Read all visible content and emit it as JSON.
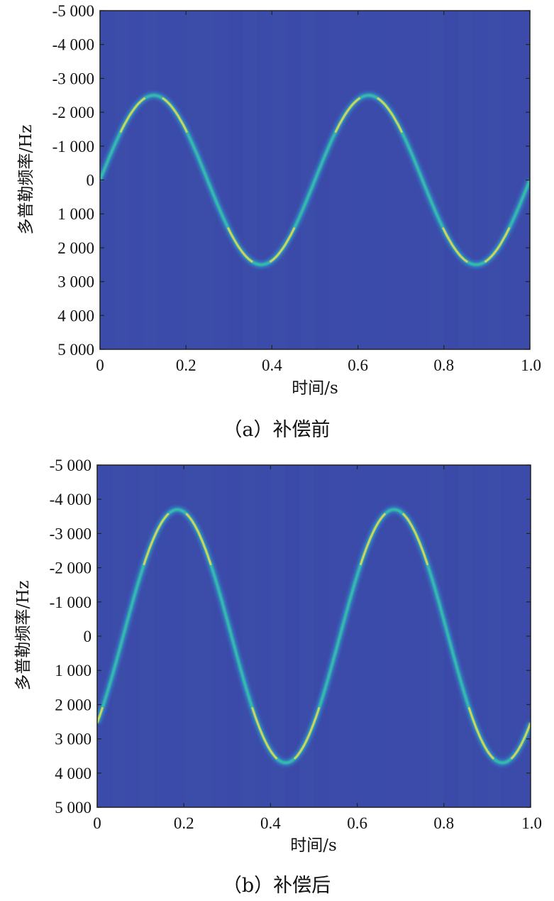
{
  "chart_data": [
    {
      "type": "heatmap",
      "caption": "（a）补偿前",
      "xlabel": "时间/s",
      "ylabel": "多普勒频率/Hz",
      "xlim": [
        0,
        1.0
      ],
      "ylim": [
        -5000,
        5000
      ],
      "y_inverted": true,
      "x_ticks": [
        "0",
        "0.2",
        "0.4",
        "0.6",
        "0.8",
        "1.0"
      ],
      "x_tick_values": [
        0,
        0.2,
        0.4,
        0.6,
        0.8,
        1.0
      ],
      "y_ticks": [
        "-5 000",
        "-4 000",
        "-3 000",
        "-2 000",
        "-1 000",
        "0",
        "1 000",
        "2 000",
        "3 000",
        "4 000",
        "5 000"
      ],
      "y_tick_values": [
        -5000,
        -4000,
        -3000,
        -2000,
        -1000,
        0,
        1000,
        2000,
        3000,
        4000,
        5000
      ],
      "colormap": "parula",
      "background_color": "#3b4aa8",
      "curve": {
        "amplitude_hz": 2500,
        "period_s": 0.5,
        "phase_s": 0.0
      },
      "grid": false
    },
    {
      "type": "heatmap",
      "caption": "（b）补偿后",
      "xlabel": "时间/s",
      "ylabel": "多普勒频率/Hz",
      "xlim": [
        0,
        1.0
      ],
      "ylim": [
        -5000,
        5000
      ],
      "y_inverted": true,
      "x_ticks": [
        "0",
        "0.2",
        "0.4",
        "0.6",
        "0.8",
        "1.0"
      ],
      "x_tick_values": [
        0,
        0.2,
        0.4,
        0.6,
        0.8,
        1.0
      ],
      "y_ticks": [
        "-5 000",
        "-4 000",
        "-3 000",
        "-2 000",
        "-1 000",
        "0",
        "1 000",
        "2 000",
        "3 000",
        "4 000",
        "5 000"
      ],
      "y_tick_values": [
        -5000,
        -4000,
        -3000,
        -2000,
        -1000,
        0,
        1000,
        2000,
        3000,
        4000,
        5000
      ],
      "colormap": "parula",
      "background_color": "#3b4aa8",
      "curve": {
        "amplitude_hz": 3700,
        "period_s": 0.5,
        "phase_s": 0.06
      },
      "grid": false
    }
  ]
}
